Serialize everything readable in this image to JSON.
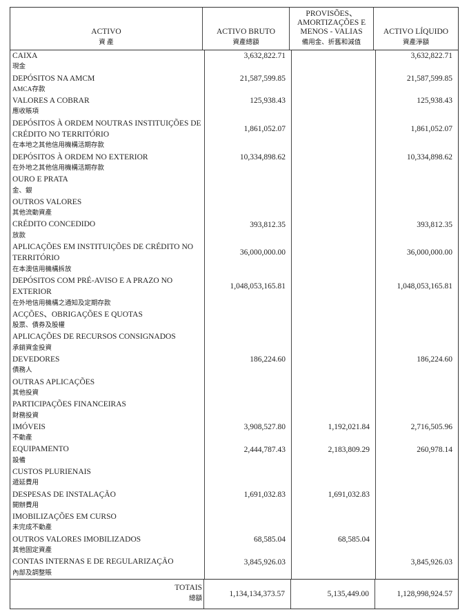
{
  "header": {
    "activo": {
      "pt": "ACTIVO",
      "zh": "資 產"
    },
    "bruto": {
      "pt": "ACTIVO BRUTO",
      "zh": "資產總額"
    },
    "provisoes": {
      "pt": [
        "PROVISÕES、",
        "AMORTIZAÇÕES E",
        "MENOS - VALIAS"
      ],
      "zh": "備用金、折舊和減值"
    },
    "liquido": {
      "pt": "ACTIVO LÍQUIDO",
      "zh": "資產淨額"
    }
  },
  "rows": [
    {
      "pt": [
        "CAIXA"
      ],
      "zh": "現金",
      "bruto": "3,632,822.71",
      "provisoes": "",
      "liquido": "3,632,822.71"
    },
    {
      "pt": [
        "DEPÓSITOS NA AMCM"
      ],
      "zh": "AMCA存款",
      "bruto": "21,587,599.85",
      "provisoes": "",
      "liquido": "21,587,599.85"
    },
    {
      "pt": [
        "VALORES A COBRAR"
      ],
      "zh": "應收賬項",
      "bruto": "125,938.43",
      "provisoes": "",
      "liquido": "125,938.43"
    },
    {
      "pt": [
        "DEPÓSITOS À ORDEM NOUTRAS INSTITUIÇÕES DE",
        "CRÉDITO NO TERRITÓRIO"
      ],
      "zh": "在本地之其他信用機構活期存款",
      "bruto": "1,861,052.07",
      "provisoes": "",
      "liquido": "1,861,052.07"
    },
    {
      "pt": [
        "DEPÓSITOS À ORDEM NO EXTERIOR"
      ],
      "zh": "在外地之其他信用機構活期存款",
      "bruto": "10,334,898.62",
      "provisoes": "",
      "liquido": "10,334,898.62"
    },
    {
      "pt": [
        "OURO E PRATA"
      ],
      "zh": "金、銀",
      "bruto": "",
      "provisoes": "",
      "liquido": ""
    },
    {
      "pt": [
        "OUTROS VALORES"
      ],
      "zh": "其他流動資產",
      "bruto": "",
      "provisoes": "",
      "liquido": ""
    },
    {
      "pt": [
        "CRÉDITO CONCEDIDO"
      ],
      "zh": "放款",
      "bruto": "393,812.35",
      "provisoes": "",
      "liquido": "393,812.35"
    },
    {
      "pt": [
        "APLICAÇÕES EM INSTITUIÇÕES DE CRÉDITO NO",
        "TERRITÓRIO"
      ],
      "zh": "在本澳信用機構拆放",
      "bruto": "36,000,000.00",
      "provisoes": "",
      "liquido": "36,000,000.00"
    },
    {
      "pt": [
        "DEPÓSITOS COM PRÉ-AVISO E A PRAZO NO",
        "EXTERIOR"
      ],
      "zh": "在外地信用機構之通知及定期存款",
      "bruto": "1,048,053,165.81",
      "provisoes": "",
      "liquido": "1,048,053,165.81"
    },
    {
      "pt": [
        "ACÇÕES、OBRIGAÇÕES E QUOTAS"
      ],
      "zh": "股票、債券及股權",
      "bruto": "",
      "provisoes": "",
      "liquido": ""
    },
    {
      "pt": [
        "APLICAÇÕES DE RECURSOS CONSIGNADOS"
      ],
      "zh": "承銷資金投資",
      "bruto": "",
      "provisoes": "",
      "liquido": ""
    },
    {
      "pt": [
        "DEVEDORES"
      ],
      "zh": "債務人",
      "bruto": "186,224.60",
      "provisoes": "",
      "liquido": "186,224.60"
    },
    {
      "pt": [
        "OUTRAS APLICAÇÕES"
      ],
      "zh": "其他投資",
      "bruto": "",
      "provisoes": "",
      "liquido": ""
    },
    {
      "pt": [
        "PARTICIPAÇÕES FINANCEIRAS"
      ],
      "zh": "財務投資",
      "bruto": "",
      "provisoes": "",
      "liquido": ""
    },
    {
      "pt": [
        "IMÓVEIS"
      ],
      "zh": "不動產",
      "bruto": "3,908,527.80",
      "provisoes": "1,192,021.84",
      "liquido": "2,716,505.96"
    },
    {
      "pt": [
        "EQUIPAMENTO"
      ],
      "zh": "設備",
      "bruto": "2,444,787.43",
      "provisoes": "2,183,809.29",
      "liquido": "260,978.14"
    },
    {
      "pt": [
        "CUSTOS PLURIENAIS"
      ],
      "zh": "遞延費用",
      "bruto": "",
      "provisoes": "",
      "liquido": ""
    },
    {
      "pt": [
        "DESPESAS DE INSTALAÇÃO"
      ],
      "zh": "開辦費用",
      "bruto": "1,691,032.83",
      "provisoes": "1,691,032.83",
      "liquido": ""
    },
    {
      "pt": [
        "IMOBILIZAÇÕES EM CURSO"
      ],
      "zh": "未完成不動產",
      "bruto": "",
      "provisoes": "",
      "liquido": ""
    },
    {
      "pt": [
        "OUTROS VALORES IMOBILIZADOS"
      ],
      "zh": "其他固定資產",
      "bruto": "68,585.04",
      "provisoes": "68,585.04",
      "liquido": ""
    },
    {
      "pt": [
        "CONTAS INTERNAS E DE REGULARIZAÇÃO"
      ],
      "zh": "內部及調整賬",
      "bruto": "3,845,926.03",
      "provisoes": "",
      "liquido": "3,845,926.03"
    }
  ],
  "totals": {
    "pt": "TOTAIS",
    "zh": "總額",
    "bruto": "1,134,134,373.57",
    "provisoes": "5,135,449.00",
    "liquido": "1,128,998,924.57"
  }
}
